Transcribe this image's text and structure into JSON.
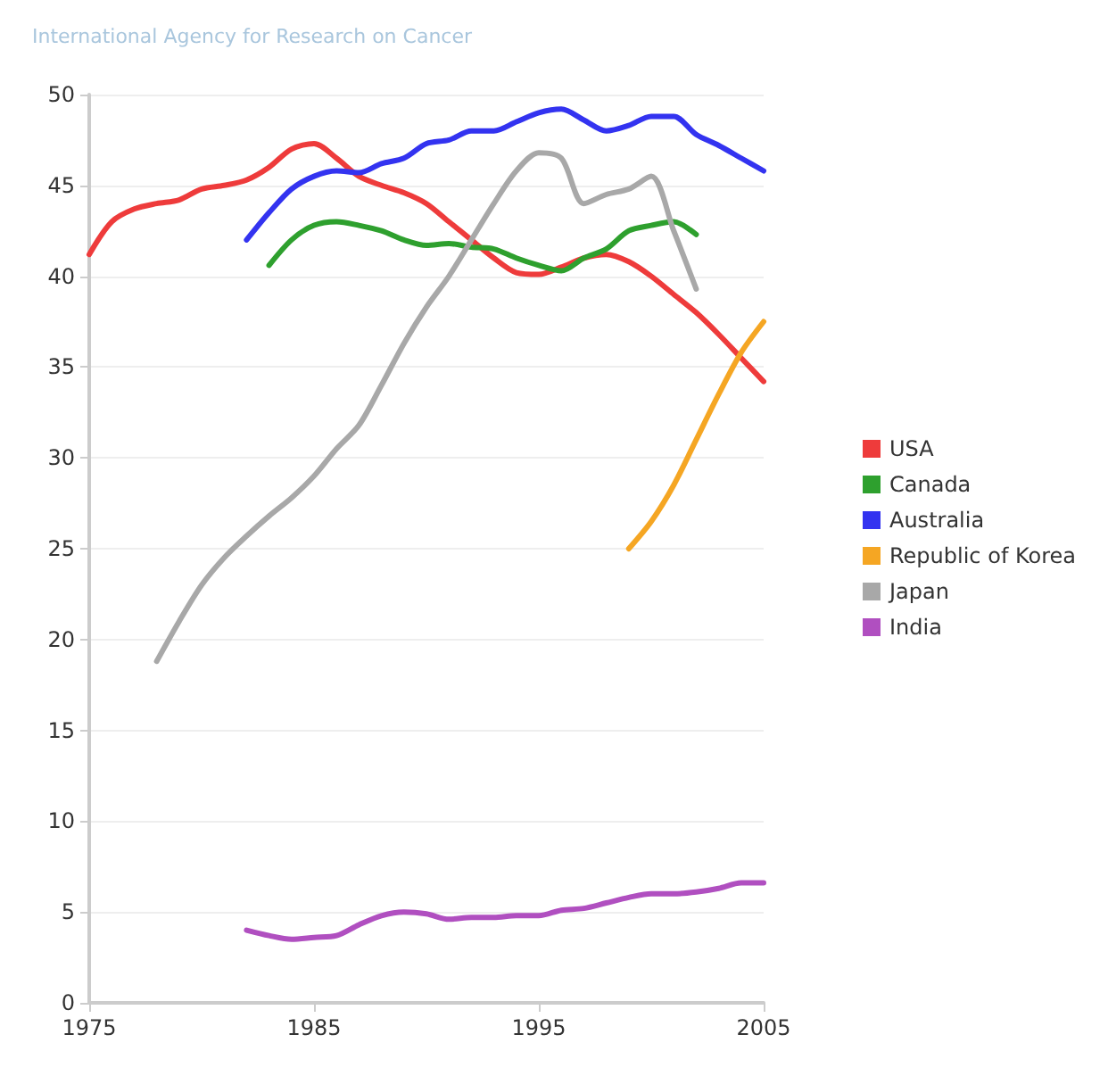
{
  "chart_data": {
    "type": "line",
    "title": "International Agency for Research on Cancer",
    "xlim": [
      1975,
      2005
    ],
    "xticks": [
      1975,
      1985,
      1995,
      2005
    ],
    "ylim": [
      0,
      50
    ],
    "yticks": [
      0,
      5,
      10,
      15,
      20,
      25,
      30,
      35,
      40,
      45,
      50
    ],
    "grid": "y",
    "legend": "right",
    "marker": "none",
    "line_style": "solid",
    "series": [
      {
        "name": "USA",
        "color": "#ee3b3b",
        "x": [
          1975,
          1976,
          1977,
          1978,
          1979,
          1980,
          1981,
          1982,
          1983,
          1984,
          1985,
          1986,
          1987,
          1988,
          1989,
          1990,
          1991,
          1992,
          1993,
          1994,
          1995,
          1996,
          1997,
          1998,
          1999,
          2000,
          2001,
          2002,
          2003,
          2004,
          2005
        ],
        "values": [
          41.2,
          43,
          43.7,
          44,
          44.2,
          44.8,
          45,
          45.3,
          46,
          47,
          47.3,
          46.5,
          45.5,
          45,
          44.6,
          44,
          43,
          42,
          41,
          40.2,
          40.1,
          40.5,
          41,
          41.2,
          40.8,
          40,
          39,
          38,
          36.8,
          35.5,
          34.2
        ]
      },
      {
        "name": "Canada",
        "color": "#2ea02e",
        "x": [
          1983,
          1984,
          1985,
          1986,
          1987,
          1988,
          1989,
          1990,
          1991,
          1992,
          1993,
          1994,
          1995,
          1996,
          1997,
          1998,
          1999,
          2000,
          2001,
          2002
        ],
        "values": [
          40.6,
          42,
          42.8,
          43,
          42.8,
          42.5,
          42,
          41.7,
          41.8,
          41.6,
          41.5,
          41,
          40.6,
          40.3,
          41,
          41.5,
          42.5,
          42.8,
          43,
          42.3
        ]
      },
      {
        "name": "Australia",
        "color": "#3333f0",
        "x": [
          1982,
          1983,
          1984,
          1985,
          1986,
          1987,
          1988,
          1989,
          1990,
          1991,
          1992,
          1993,
          1994,
          1995,
          1996,
          1997,
          1998,
          1999,
          2000,
          2001,
          2002,
          2003,
          2004,
          2005
        ],
        "values": [
          42,
          43.5,
          44.8,
          45.5,
          45.8,
          45.7,
          46.2,
          46.5,
          47.3,
          47.5,
          48,
          48,
          48.5,
          49,
          49.2,
          48.6,
          48,
          48.3,
          48.8,
          48.8,
          47.8,
          47.2,
          46.5,
          45.8
        ]
      },
      {
        "name": "Republic of Korea",
        "color": "#f5a623",
        "x": [
          1999,
          2000,
          2001,
          2002,
          2003,
          2004,
          2005
        ],
        "values": [
          25,
          26.5,
          28.5,
          31,
          33.5,
          35.8,
          37.5
        ]
      },
      {
        "name": "Japan",
        "color": "#a8a8a8",
        "x": [
          1978,
          1979,
          1980,
          1981,
          1982,
          1983,
          1984,
          1985,
          1986,
          1987,
          1988,
          1989,
          1990,
          1991,
          1992,
          1993,
          1994,
          1995,
          1996,
          1997,
          1998,
          1999,
          2000,
          2001,
          2002
        ],
        "values": [
          18.8,
          21,
          23,
          24.5,
          25.7,
          26.8,
          27.8,
          29,
          30.5,
          31.8,
          34,
          36.3,
          38.3,
          40,
          42,
          44,
          45.8,
          46.8,
          46.5,
          44,
          44.5,
          44.8,
          45.5,
          42.5,
          39.3
        ]
      },
      {
        "name": "India",
        "color": "#b04fc0",
        "x": [
          1982,
          1983,
          1984,
          1985,
          1986,
          1987,
          1988,
          1989,
          1990,
          1991,
          1992,
          1993,
          1994,
          1995,
          1996,
          1997,
          1998,
          1999,
          2000,
          2001,
          2002,
          2003,
          2004,
          2005
        ],
        "values": [
          4,
          3.7,
          3.5,
          3.6,
          3.7,
          4.3,
          4.8,
          5,
          4.9,
          4.6,
          4.7,
          4.7,
          4.8,
          4.8,
          5.1,
          5.2,
          5.5,
          5.8,
          6,
          6,
          6.1,
          6.3,
          6.6,
          6.6
        ]
      }
    ]
  }
}
